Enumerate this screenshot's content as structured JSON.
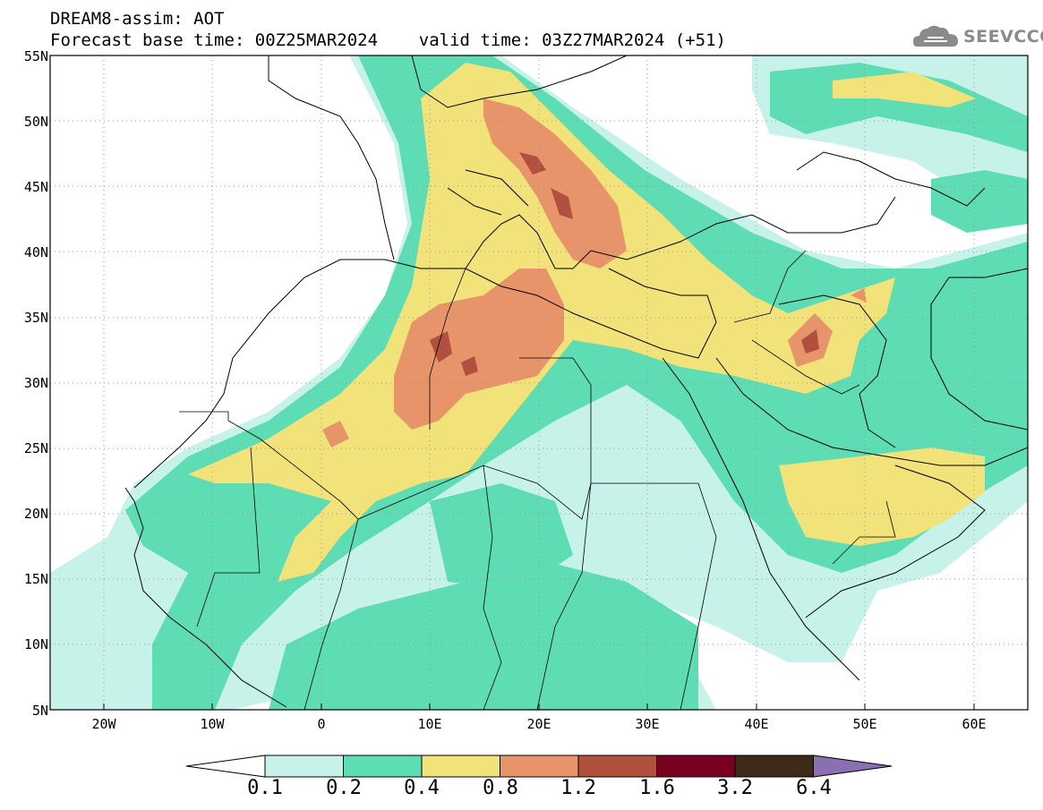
{
  "title_line1": "DREAM8-assim: AOT",
  "title_line2": "Forecast base time: 00Z25MAR2024    valid time: 03Z27MAR2024 (+51)",
  "logo": {
    "text": "SEEVCCC",
    "icon": "cloud-icon",
    "color": "#8a8a8a"
  },
  "map": {
    "lat_labels": [
      "55N",
      "50N",
      "45N",
      "40N",
      "35N",
      "30N",
      "25N",
      "20N",
      "15N",
      "10N",
      "5N"
    ],
    "lon_labels": [
      "20W",
      "10W",
      "0",
      "10E",
      "20E",
      "30E",
      "40E",
      "50E",
      "60E"
    ],
    "lat_range": [
      5,
      55
    ],
    "lon_range": [
      -25,
      65
    ],
    "grid": "dotted"
  },
  "colorbar": {
    "colors": [
      "#ffffff",
      "#c6f2ea",
      "#5edcb4",
      "#f2e27a",
      "#e8946a",
      "#b25040",
      "#7a0022",
      "#3e2a18",
      "#8a70b0"
    ],
    "labels": [
      "0.1",
      "0.2",
      "0.4",
      "0.8",
      "1.2",
      "1.6",
      "3.2",
      "6.4"
    ]
  }
}
